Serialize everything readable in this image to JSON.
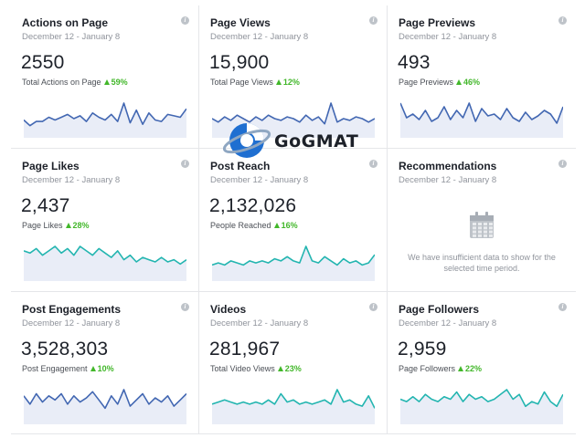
{
  "cards": [
    {
      "title": "Actions on Page",
      "date": "December 12 - January 8",
      "value": "2550",
      "label": "Total Actions on Page",
      "pct": "59%",
      "color": "#4267b2",
      "series": [
        10,
        6,
        9,
        9,
        12,
        10,
        12,
        14,
        11,
        13,
        9,
        15,
        12,
        10,
        14,
        9,
        22,
        8,
        17,
        7,
        15,
        10,
        9,
        14,
        13,
        12,
        18
      ]
    },
    {
      "title": "Page Views",
      "date": "December 12 - January 8",
      "value": "15,900",
      "label": "Total Page Views",
      "pct": "12%",
      "color": "#4267b2",
      "series": [
        12,
        10,
        13,
        11,
        14,
        12,
        10,
        13,
        11,
        14,
        12,
        11,
        13,
        12,
        10,
        14,
        11,
        13,
        9,
        21,
        10,
        12,
        11,
        13,
        12,
        10,
        12
      ]
    },
    {
      "title": "Page Previews",
      "date": "December 12 - January 8",
      "value": "493",
      "label": "Page Previews",
      "pct": "46%",
      "color": "#4267b2",
      "series": [
        18,
        10,
        12,
        9,
        14,
        8,
        10,
        16,
        9,
        14,
        10,
        18,
        8,
        15,
        11,
        12,
        9,
        15,
        10,
        8,
        13,
        9,
        11,
        14,
        12,
        7,
        16
      ]
    },
    {
      "title": "Page Likes",
      "date": "December 12 - January 8",
      "value": "2,437",
      "label": "Page Likes",
      "pct": "28%",
      "color": "#23b5b0",
      "series": [
        14,
        13,
        15,
        12,
        14,
        16,
        13,
        15,
        12,
        16,
        14,
        12,
        15,
        13,
        11,
        14,
        10,
        12,
        9,
        11,
        10,
        9,
        11,
        9,
        10,
        8,
        10
      ]
    },
    {
      "title": "Post Reach",
      "date": "December 12 - January 8",
      "value": "2,132,026",
      "label": "People Reached",
      "pct": "16%",
      "color": "#23b5b0",
      "series": [
        10,
        11,
        10,
        12,
        11,
        10,
        12,
        11,
        12,
        11,
        13,
        12,
        14,
        12,
        11,
        19,
        12,
        11,
        14,
        12,
        10,
        13,
        11,
        12,
        10,
        11,
        15
      ]
    },
    {
      "title": "Recommendations",
      "date": "December 12 - January 8",
      "nodata": "We have insufficient data to show for the selected time period."
    },
    {
      "title": "Post Engagements",
      "date": "December 12 - January 8",
      "value": "3,528,303",
      "label": "Post Engagement",
      "pct": "10%",
      "color": "#4267b2",
      "series": [
        16,
        12,
        17,
        13,
        16,
        14,
        17,
        12,
        16,
        13,
        15,
        18,
        14,
        10,
        16,
        12,
        19,
        11,
        14,
        17,
        12,
        15,
        13,
        16,
        11,
        14,
        17
      ]
    },
    {
      "title": "Videos",
      "date": "December 12 - January 8",
      "value": "281,967",
      "label": "Total Video Views",
      "pct": "23%",
      "color": "#23b5b0",
      "series": [
        10,
        11,
        12,
        11,
        10,
        11,
        10,
        11,
        10,
        12,
        10,
        15,
        11,
        12,
        10,
        11,
        10,
        11,
        12,
        10,
        17,
        11,
        12,
        10,
        9,
        14,
        8
      ]
    },
    {
      "title": "Page Followers",
      "date": "December 12 - January 8",
      "value": "2,959",
      "label": "Page Followers",
      "pct": "22%",
      "color": "#23b5b0",
      "series": [
        13,
        12,
        14,
        12,
        15,
        13,
        12,
        14,
        13,
        16,
        12,
        15,
        13,
        14,
        12,
        13,
        15,
        17,
        13,
        15,
        10,
        12,
        11,
        16,
        12,
        10,
        15
      ]
    }
  ],
  "logo": {
    "text": "GoGMAT",
    "primary": "#1f6fd1",
    "accent": "#9ab1c9"
  }
}
